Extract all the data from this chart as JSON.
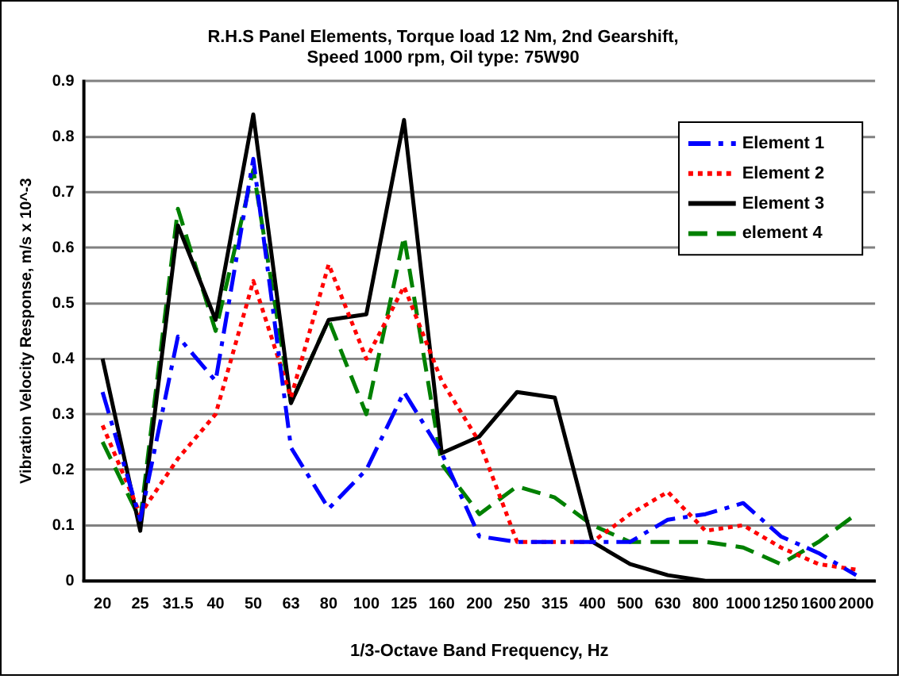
{
  "chart_data": {
    "type": "line",
    "title": [
      "R.H.S Panel Elements, Torque load 12 Nm, 2nd Gearshift,",
      "Speed 1000 rpm, Oil type: 75W90"
    ],
    "xlabel": "1/3-Octave Band Frequency, Hz",
    "ylabel": "Vibration Velocity Response, m/s x 10^-3",
    "categories": [
      "20",
      "25",
      "31.5",
      "40",
      "50",
      "63",
      "80",
      "100",
      "125",
      "160",
      "200",
      "250",
      "315",
      "400",
      "500",
      "630",
      "800",
      "1000",
      "1250",
      "1600",
      "2000"
    ],
    "series": [
      {
        "name": "Element 1",
        "color": "#0000ff",
        "line_style": "dashdot",
        "values": [
          0.34,
          0.11,
          0.44,
          0.36,
          0.76,
          0.24,
          0.13,
          0.2,
          0.34,
          0.23,
          0.08,
          0.07,
          0.07,
          0.07,
          0.07,
          0.11,
          0.12,
          0.14,
          0.08,
          0.05,
          0.01
        ]
      },
      {
        "name": "Element 2",
        "color": "#ff0000",
        "line_style": "dotted",
        "values": [
          0.28,
          0.12,
          0.22,
          0.3,
          0.54,
          0.33,
          0.57,
          0.4,
          0.53,
          0.36,
          0.25,
          0.07,
          0.07,
          0.07,
          0.12,
          0.16,
          0.09,
          0.1,
          0.06,
          0.03,
          0.02
        ]
      },
      {
        "name": "Element 3",
        "color": "#000000",
        "line_style": "solid",
        "values": [
          0.4,
          0.09,
          0.64,
          0.47,
          0.84,
          0.32,
          0.47,
          0.48,
          0.83,
          0.23,
          0.26,
          0.34,
          0.33,
          0.07,
          0.03,
          0.01,
          0,
          0,
          0,
          0,
          0
        ]
      },
      {
        "name": "element 4",
        "color": "#008000",
        "line_style": "dashed",
        "values": [
          0.25,
          0.11,
          0.67,
          0.45,
          0.74,
          0.32,
          0.47,
          0.3,
          0.62,
          0.21,
          0.12,
          0.17,
          0.15,
          0.1,
          0.07,
          0.07,
          0.07,
          0.06,
          0.03,
          0.07,
          0.12
        ]
      }
    ],
    "ylim": [
      0,
      0.9
    ],
    "yticks": [
      0,
      0.1,
      0.2,
      0.3,
      0.4,
      0.5,
      0.6,
      0.7,
      0.8,
      0.9
    ],
    "grid": "y",
    "legend": "top right",
    "marker": "none"
  }
}
